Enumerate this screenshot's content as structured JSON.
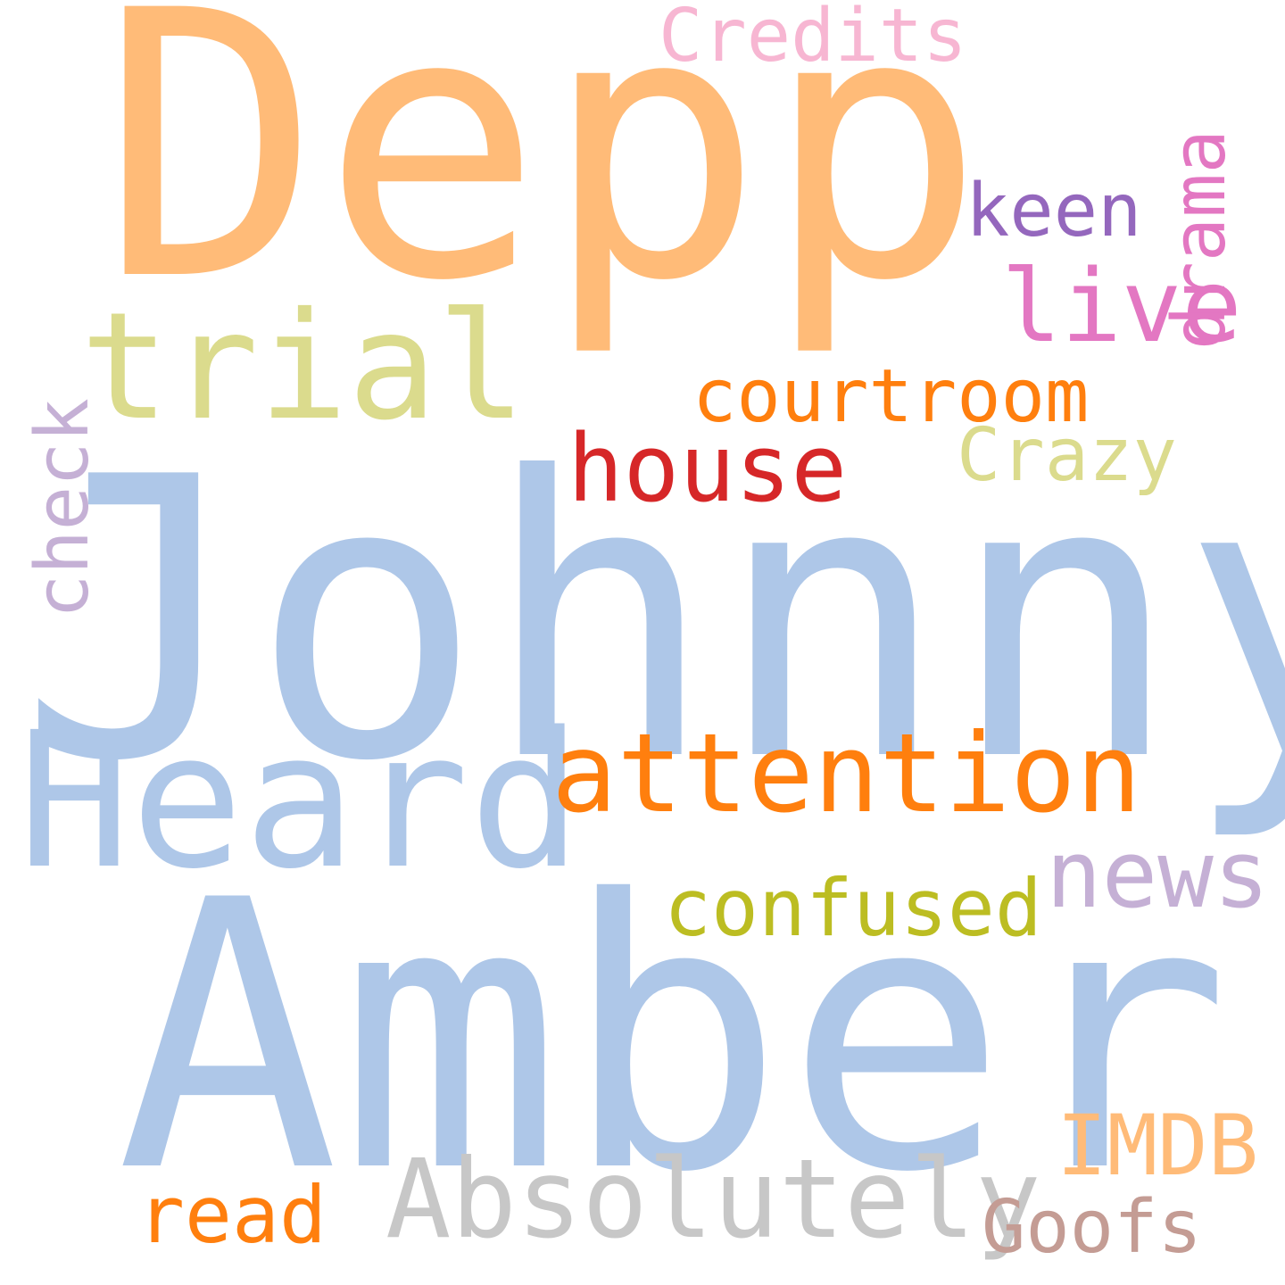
{
  "word_cloud": {
    "background": "#ffffff",
    "words": [
      {
        "id": "johnny",
        "text": "Johnny",
        "color": "#aec7e8"
      },
      {
        "id": "depp",
        "text": "Depp",
        "color": "#ffbb78"
      },
      {
        "id": "amber",
        "text": "Amber",
        "color": "#aec7e8"
      },
      {
        "id": "heard",
        "text": "Heard",
        "color": "#aec7e8"
      },
      {
        "id": "trial",
        "text": "trial",
        "color": "#dbdb8d"
      },
      {
        "id": "attention",
        "text": "attention",
        "color": "#ff7f0e"
      },
      {
        "id": "absolutely",
        "text": "Absolutely",
        "color": "#c7c7c7"
      },
      {
        "id": "news",
        "text": "news",
        "color": "#c5b0d5"
      },
      {
        "id": "live",
        "text": "live",
        "color": "#e377c2"
      },
      {
        "id": "house",
        "text": "house",
        "color": "#d62728"
      },
      {
        "id": "courtroom",
        "text": "courtroom",
        "color": "#ff7f0e"
      },
      {
        "id": "confused",
        "text": "confused",
        "color": "#bcbd22"
      },
      {
        "id": "crazy",
        "text": "Crazy",
        "color": "#dbdb8d"
      },
      {
        "id": "keen",
        "text": "keen",
        "color": "#9467bd"
      },
      {
        "id": "credits",
        "text": "Credits",
        "color": "#f7b6d2"
      },
      {
        "id": "imdb",
        "text": "IMDB",
        "color": "#ffbb78"
      },
      {
        "id": "read",
        "text": "read",
        "color": "#ff7f0e"
      },
      {
        "id": "goofs",
        "text": "Goofs",
        "color": "#c49c94"
      },
      {
        "id": "drama",
        "text": "drama",
        "color": "#e377c2",
        "orientation": "vertical"
      },
      {
        "id": "check",
        "text": "check",
        "color": "#c5b0d5",
        "orientation": "vertical"
      }
    ]
  }
}
